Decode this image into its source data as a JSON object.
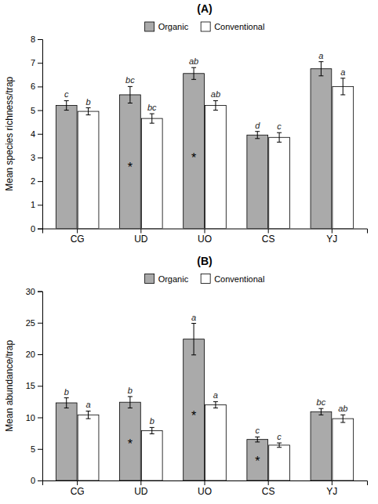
{
  "chart_data": [
    {
      "type": "bar",
      "title": "(A)",
      "ylabel": "Mean species richness/trap",
      "categories": [
        "CG",
        "UD",
        "UO",
        "CS",
        "YJ"
      ],
      "series": [
        {
          "name": "Organic",
          "color": "#aaaaaa",
          "values": [
            5.2,
            5.65,
            6.55,
            3.95,
            6.75
          ],
          "errors": [
            0.2,
            0.35,
            0.25,
            0.15,
            0.3
          ],
          "letters": [
            "c",
            "bc",
            "ab",
            "d",
            "a"
          ]
        },
        {
          "name": "Conventional",
          "color": "#ffffff",
          "values": [
            4.95,
            4.65,
            5.2,
            3.85,
            6.0
          ],
          "errors": [
            0.15,
            0.2,
            0.2,
            0.2,
            0.35
          ],
          "letters": [
            "b",
            "bc",
            "ab",
            "c",
            "a"
          ]
        }
      ],
      "annotations": [
        {
          "text": "*",
          "category": "UD",
          "series": "Organic"
        },
        {
          "text": "*",
          "category": "UO",
          "series": "Organic"
        }
      ],
      "ylim": [
        0,
        8
      ],
      "yticks": [
        0,
        1,
        2,
        3,
        4,
        5,
        6,
        7,
        8
      ],
      "grid": false,
      "legend": "top"
    },
    {
      "type": "bar",
      "title": "(B)",
      "ylabel": "Mean abundance/trap",
      "categories": [
        "CG",
        "UD",
        "UO",
        "CS",
        "YJ"
      ],
      "series": [
        {
          "name": "Organic",
          "color": "#aaaaaa",
          "values": [
            12.3,
            12.4,
            22.4,
            6.5,
            10.9
          ],
          "errors": [
            0.8,
            0.9,
            2.5,
            0.4,
            0.5
          ],
          "letters": [
            "b",
            "b",
            "a",
            "c",
            "bc"
          ]
        },
        {
          "name": "Conventional",
          "color": "#ffffff",
          "values": [
            10.4,
            7.9,
            12.0,
            5.6,
            9.8
          ],
          "errors": [
            0.6,
            0.5,
            0.5,
            0.35,
            0.6
          ],
          "letters": [
            "a",
            "b",
            "a",
            "c",
            "ab"
          ]
        }
      ],
      "annotations": [
        {
          "text": "*",
          "category": "UD",
          "series": "Organic"
        },
        {
          "text": "*",
          "category": "UO",
          "series": "Organic"
        },
        {
          "text": "*",
          "category": "CS",
          "series": "Organic"
        }
      ],
      "ylim": [
        0,
        30
      ],
      "yticks": [
        0,
        5,
        10,
        15,
        20,
        25,
        30
      ],
      "grid": false,
      "legend": "top"
    }
  ]
}
